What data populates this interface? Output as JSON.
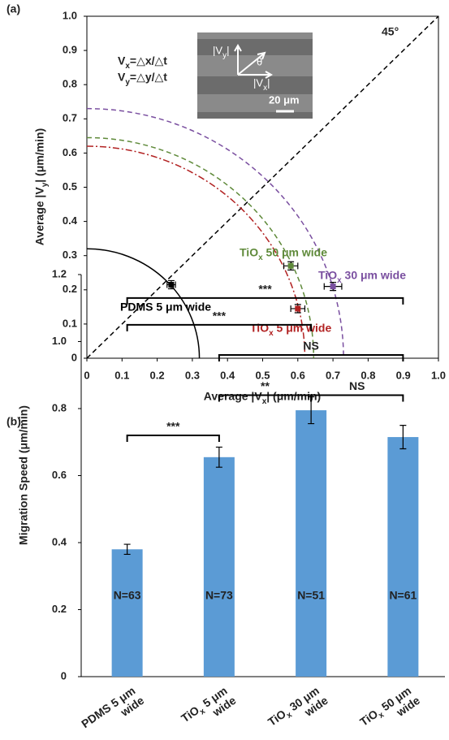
{
  "chart_data": [
    {
      "type": "scatter",
      "label": "(a)",
      "xlabel": "Average |Vx| (μm/min)",
      "ylabel": "Average |Vy| (μm/min)",
      "xlim": [
        0,
        1
      ],
      "ylim": [
        0,
        1
      ],
      "xticks": [
        0,
        0.1,
        0.2,
        0.3,
        0.4,
        0.5,
        0.6,
        0.7,
        0.8,
        0.9,
        {
          "value": 1,
          "label": "1.0"
        }
      ],
      "yticks": [
        0,
        0.1,
        0.2,
        0.3,
        0.4,
        0.5,
        0.6,
        0.7,
        0.8,
        0.9,
        {
          "value": 1,
          "label": "1.0"
        }
      ],
      "reference_line": {
        "label": "45°"
      },
      "annotations": [
        "Vx=△x/△t",
        "Vy=△y/△t"
      ],
      "inset": {
        "labels": [
          "|Vy|",
          "θ",
          "|Vx|",
          "20 μm"
        ]
      },
      "series": [
        {
          "name": "PDMS 5 μm wide",
          "color": "#000000",
          "x": [
            0.24
          ],
          "values": [
            0.215
          ],
          "x_error": [
            0.012
          ],
          "y_error": [
            0.012
          ],
          "radius": 0.32,
          "line_style": "solid"
        },
        {
          "name": "TiOx 50 μm wide",
          "color": "#5f8a3a",
          "x": [
            0.58
          ],
          "values": [
            0.27
          ],
          "x_error": [
            0.02
          ],
          "y_error": [
            0.012
          ],
          "radius": 0.645,
          "line_style": "dashed"
        },
        {
          "name": "TiOx 30 μm wide",
          "color": "#7a4fa0",
          "x": [
            0.7
          ],
          "values": [
            0.21
          ],
          "x_error": [
            0.025
          ],
          "y_error": [
            0.012
          ],
          "radius": 0.73,
          "line_style": "dashed"
        },
        {
          "name": "TiOx 5 μm wide",
          "color": "#b22222",
          "x": [
            0.6
          ],
          "values": [
            0.145
          ],
          "x_error": [
            0.02
          ],
          "y_error": [
            0.012
          ],
          "radius": 0.62,
          "line_style": "dashdot"
        }
      ]
    },
    {
      "type": "bar",
      "label": "(b)",
      "ylabel": "Migration Speed (μm/min)",
      "categories": [
        "PDMS 5 μm wide",
        "TiOx 5 μm wide",
        "TiOx 30 μm wide",
        "TiOx 50 μm wide"
      ],
      "values": [
        0.38,
        0.655,
        0.795,
        0.715
      ],
      "errors": [
        0.015,
        0.03,
        0.04,
        0.035
      ],
      "bar_labels": [
        "N=63",
        "N=73",
        "N=51",
        "N=61"
      ],
      "color": "#5b9bd5",
      "ylim": [
        0,
        1.2
      ],
      "yticks": [
        0,
        0.2,
        0.4,
        0.6,
        0.8,
        {
          "value": 1,
          "label": "1.0"
        },
        1.2
      ],
      "comparisons": [
        {
          "pair": [
            "PDMS 5 μm wide",
            "TiOx 5 μm wide"
          ],
          "label": "***",
          "height": 0.72
        },
        {
          "pair": [
            "TiOx 5 μm wide",
            "TiOx 30 μm wide"
          ],
          "label": "**",
          "height": 0.84
        },
        {
          "pair": [
            "TiOx 30 μm wide",
            "TiOx 50 μm wide"
          ],
          "label": "NS",
          "height": 0.84
        },
        {
          "pair": [
            "TiOx 5 μm wide",
            "TiOx 50 μm wide"
          ],
          "label": "NS",
          "height": 0.96
        },
        {
          "pair": [
            "PDMS 5 μm wide",
            "TiOx 30 μm wide"
          ],
          "label": "***",
          "height": 1.05
        },
        {
          "pair": [
            "PDMS 5 μm wide",
            "TiOx 50 μm wide"
          ],
          "label": "***",
          "height": 1.13
        }
      ]
    }
  ]
}
